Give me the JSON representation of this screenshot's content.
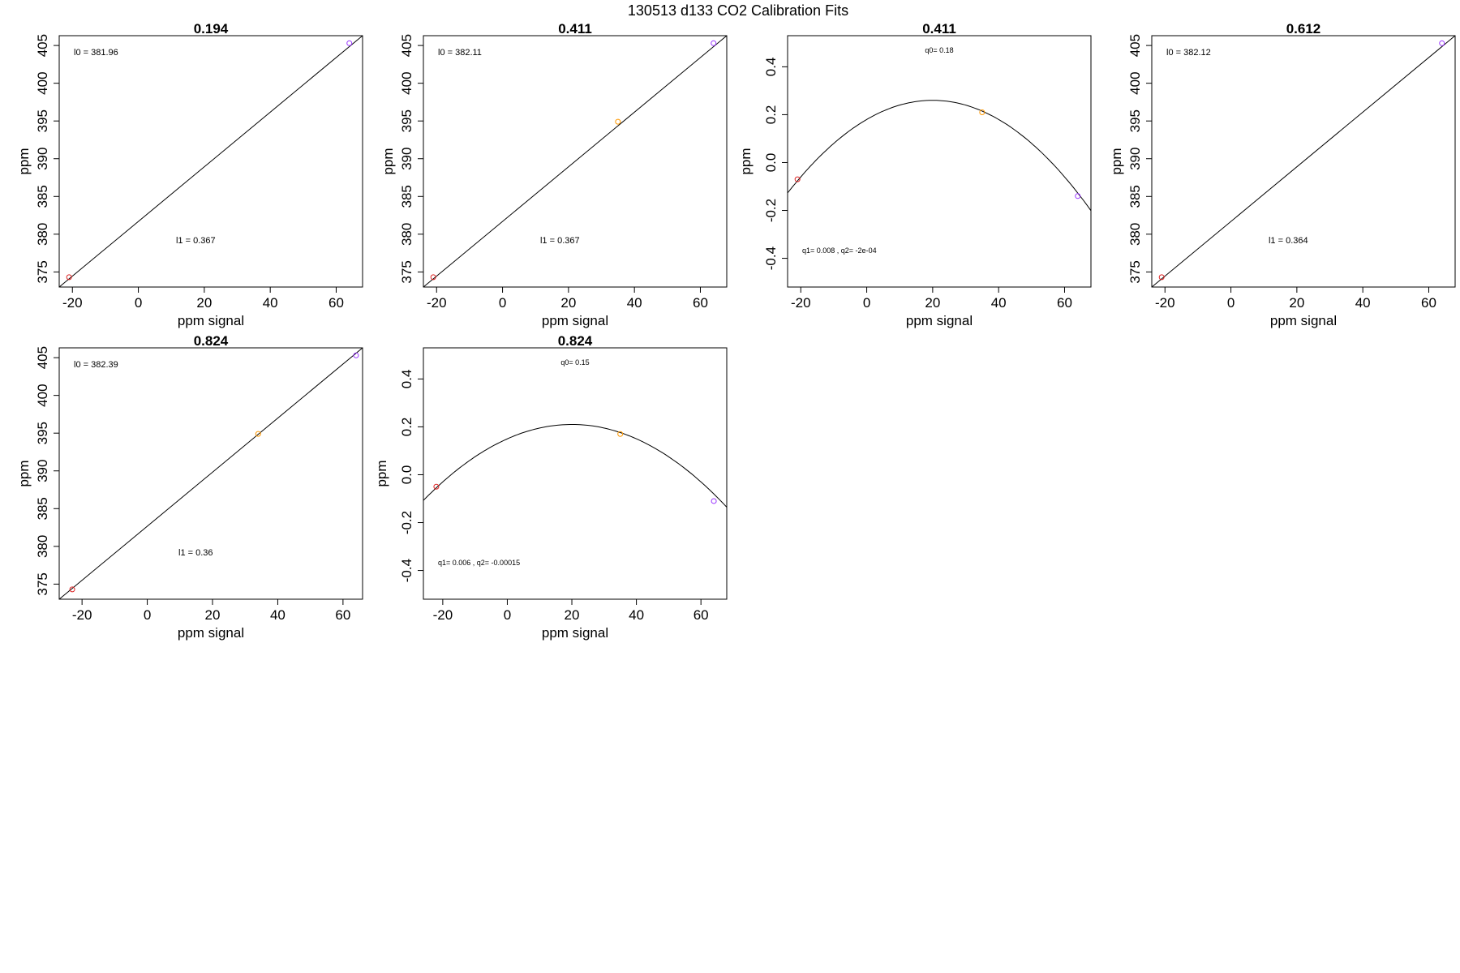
{
  "figure_title": "130513   d133   CO2 Calibration Fits",
  "chart_data": [
    {
      "type": "scatter",
      "title": "0.194",
      "xlabel": "ppm signal",
      "ylabel": "ppm",
      "xlim": [
        -24,
        68
      ],
      "ylim": [
        373.0,
        406.3
      ],
      "xticks": [
        -20,
        0,
        20,
        40,
        60
      ],
      "yticks": [
        375,
        380,
        385,
        390,
        395,
        400,
        405
      ],
      "fit": "linear",
      "fit_line": [
        [
          -24,
          373.0
        ],
        [
          68,
          406.3
        ]
      ],
      "points": [
        {
          "x": -21,
          "y": 374.3,
          "color": "#dd2222"
        },
        {
          "x": 64,
          "y": 405.3,
          "color": "#9933ff"
        }
      ],
      "annotations": {
        "top": "l0 =  381.96",
        "bottom": "l1 =  0.367"
      },
      "grid": false
    },
    {
      "type": "scatter",
      "title": "0.411",
      "xlabel": "ppm signal",
      "ylabel": "ppm",
      "xlim": [
        -24,
        68
      ],
      "ylim": [
        373.0,
        406.3
      ],
      "xticks": [
        -20,
        0,
        20,
        40,
        60
      ],
      "yticks": [
        375,
        380,
        385,
        390,
        395,
        400,
        405
      ],
      "fit": "linear",
      "fit_line": [
        [
          -24,
          373.0
        ],
        [
          68,
          406.3
        ]
      ],
      "points": [
        {
          "x": -21,
          "y": 374.3,
          "color": "#dd2222"
        },
        {
          "x": 35,
          "y": 394.9,
          "color": "#ff9900"
        },
        {
          "x": 64,
          "y": 405.3,
          "color": "#9933ff"
        }
      ],
      "annotations": {
        "top": "l0 =  382.11",
        "bottom": "l1 =  0.367"
      },
      "grid": false
    },
    {
      "type": "scatter",
      "title": "0.411",
      "xlabel": "ppm signal",
      "ylabel": "ppm",
      "xlim": [
        -24,
        68
      ],
      "ylim": [
        -0.52,
        0.53
      ],
      "xticks": [
        -20,
        0,
        20,
        40,
        60
      ],
      "yticks": [
        -0.4,
        -0.2,
        0.0,
        0.2,
        0.4
      ],
      "fit": "quadratic",
      "quad": {
        "q0": 0.18,
        "q1": 0.008,
        "q2": -0.0002
      },
      "points": [
        {
          "x": -21,
          "y": -0.07,
          "color": "#dd2222"
        },
        {
          "x": 35,
          "y": 0.21,
          "color": "#ff9900"
        },
        {
          "x": 64,
          "y": -0.14,
          "color": "#9933ff"
        }
      ],
      "annotations": {
        "top": "q0= 0.18",
        "bottom": "q1= 0.008 , q2= -2e-04"
      },
      "grid": false
    },
    {
      "type": "scatter",
      "title": "0.612",
      "xlabel": "ppm signal",
      "ylabel": "ppm",
      "xlim": [
        -24,
        68
      ],
      "ylim": [
        373.0,
        406.3
      ],
      "xticks": [
        -20,
        0,
        20,
        40,
        60
      ],
      "yticks": [
        375,
        380,
        385,
        390,
        395,
        400,
        405
      ],
      "fit": "linear",
      "fit_line": [
        [
          -24,
          373.0
        ],
        [
          68,
          406.3
        ]
      ],
      "points": [
        {
          "x": -21,
          "y": 374.3,
          "color": "#dd2222"
        },
        {
          "x": 64,
          "y": 405.3,
          "color": "#9933ff"
        }
      ],
      "annotations": {
        "top": "l0 =  382.12",
        "bottom": "l1 =  0.364"
      },
      "grid": false
    },
    {
      "type": "scatter",
      "title": "0.824",
      "xlabel": "ppm signal",
      "ylabel": "ppm",
      "xlim": [
        -27,
        66
      ],
      "ylim": [
        373.0,
        406.3
      ],
      "xticks": [
        -20,
        0,
        20,
        40,
        60
      ],
      "yticks": [
        375,
        380,
        385,
        390,
        395,
        400,
        405
      ],
      "fit": "linear",
      "fit_line": [
        [
          -27,
          373.0
        ],
        [
          66,
          406.3
        ]
      ],
      "points": [
        {
          "x": -23,
          "y": 374.3,
          "color": "#dd2222"
        },
        {
          "x": 34,
          "y": 394.9,
          "color": "#ff9900"
        },
        {
          "x": 64,
          "y": 405.3,
          "color": "#9933ff"
        }
      ],
      "annotations": {
        "top": "l0 =  382.39",
        "bottom": "l1 =  0.36"
      },
      "grid": false
    },
    {
      "type": "scatter",
      "title": "0.824",
      "xlabel": "ppm signal",
      "ylabel": "ppm",
      "xlim": [
        -26,
        68
      ],
      "ylim": [
        -0.52,
        0.53
      ],
      "xticks": [
        -20,
        0,
        20,
        40,
        60
      ],
      "yticks": [
        -0.4,
        -0.2,
        0.0,
        0.2,
        0.4
      ],
      "fit": "quadratic",
      "quad": {
        "q0": 0.15,
        "q1": 0.006,
        "q2": -0.00015
      },
      "points": [
        {
          "x": -22,
          "y": -0.05,
          "color": "#dd2222"
        },
        {
          "x": 35,
          "y": 0.17,
          "color": "#ff9900"
        },
        {
          "x": 64,
          "y": -0.11,
          "color": "#9933ff"
        }
      ],
      "annotations": {
        "top": "q0= 0.15",
        "bottom": "q1= 0.006 , q2= -0.00015"
      },
      "grid": false
    }
  ]
}
